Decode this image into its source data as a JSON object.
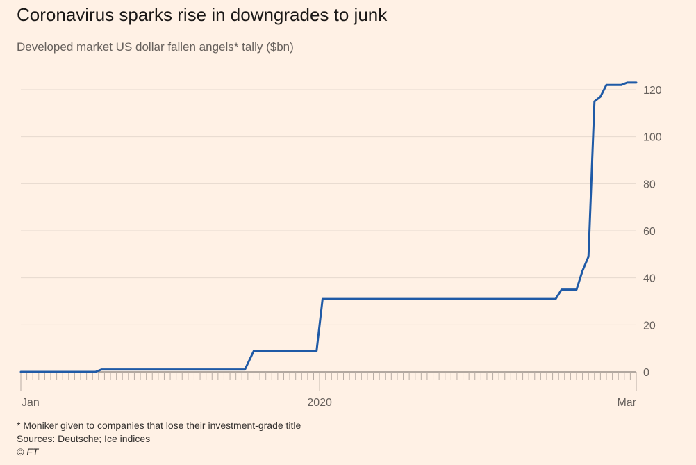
{
  "header": {
    "title": "Coronavirus sparks rise in downgrades to junk",
    "subtitle": "Developed market US dollar fallen angels* tally ($bn)"
  },
  "footer": {
    "note": "* Moniker given to companies that lose their investment-grade title",
    "sources": "Sources: Deutsche; Ice indices",
    "credit": "© FT"
  },
  "colors": {
    "background": "#fff1e5",
    "line": "#1f5aa6",
    "grid": "#e6d9ce",
    "axis": "#66605c"
  },
  "chart_data": {
    "type": "line",
    "title": "Coronavirus sparks rise in downgrades to junk",
    "subtitle": "Developed market US dollar fallen angels* tally ($bn)",
    "xlabel": "",
    "ylabel": "",
    "ylim": [
      0,
      120
    ],
    "yticks": [
      0,
      20,
      40,
      60,
      80,
      100,
      120
    ],
    "y_axis_side": "right",
    "x_ticks": [
      {
        "label": "Jan",
        "x": 0
      },
      {
        "label": "2020",
        "x": 100
      },
      {
        "label": "Mar",
        "x": 206
      }
    ],
    "grid": true,
    "series": [
      {
        "values": [
          [
            0,
            0
          ],
          [
            25,
            0
          ],
          [
            27,
            1
          ],
          [
            75,
            1
          ],
          [
            78,
            9
          ],
          [
            99,
            9
          ],
          [
            101,
            31
          ],
          [
            179,
            31
          ],
          [
            181,
            35
          ],
          [
            186,
            35
          ],
          [
            188,
            43
          ],
          [
            190,
            49
          ],
          [
            192,
            115
          ],
          [
            194,
            117
          ],
          [
            196,
            122
          ],
          [
            201,
            122
          ],
          [
            203,
            123
          ],
          [
            206,
            123
          ]
        ]
      }
    ]
  }
}
